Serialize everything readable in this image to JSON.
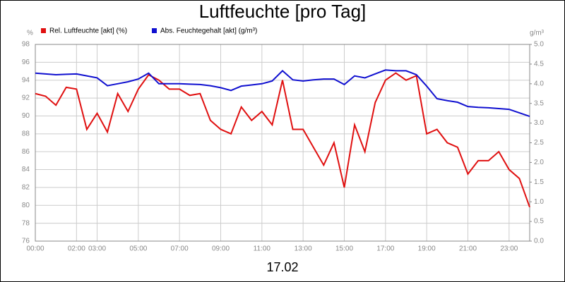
{
  "chart_data": {
    "type": "line",
    "title": "Luftfeuchte [pro Tag]",
    "xlabel": "17.02",
    "ylabel": "%",
    "y2label": "g/m³",
    "x": [
      0,
      0.5,
      1,
      1.5,
      2,
      2.5,
      3,
      3.5,
      4,
      4.5,
      5,
      5.5,
      6,
      6.5,
      7,
      7.5,
      8,
      8.5,
      9,
      9.5,
      10,
      10.5,
      11,
      11.5,
      12,
      12.5,
      13,
      13.5,
      14,
      14.5,
      15,
      15.5,
      16,
      16.5,
      17,
      17.5,
      18,
      18.5,
      19,
      19.5,
      20,
      20.5,
      21,
      21.5,
      22,
      22.5,
      23,
      23.5,
      24
    ],
    "series": [
      {
        "name": "Rel. Luftfeuchte [akt] (%)",
        "color": "#e01010",
        "values": [
          92.5,
          92.2,
          91.2,
          93.2,
          93.0,
          88.5,
          90.3,
          88.2,
          92.5,
          90.5,
          93.0,
          94.6,
          94.0,
          93.0,
          93.0,
          92.3,
          92.5,
          89.5,
          88.5,
          88.0,
          91.0,
          89.5,
          90.5,
          89.0,
          94.0,
          88.5,
          88.5,
          86.5,
          84.5,
          87.0,
          82.0,
          89.0,
          86.0,
          91.5,
          94.0,
          94.8,
          94.0,
          94.5,
          88.0,
          88.5,
          87.0,
          86.5,
          83.5,
          85.0,
          85.0,
          86.0,
          84.0,
          83.0,
          79.8
        ]
      },
      {
        "name": "Abs. Feuchtegehalt [akt] (g/m³)",
        "color": "#1010d0",
        "axis": "y2",
        "values": [
          4.27,
          4.25,
          4.23,
          4.24,
          4.25,
          4.2,
          4.15,
          3.95,
          4.0,
          4.05,
          4.12,
          4.27,
          4.0,
          4.0,
          4.0,
          3.99,
          3.98,
          3.95,
          3.9,
          3.83,
          3.94,
          3.97,
          4.0,
          4.07,
          4.33,
          4.1,
          4.07,
          4.1,
          4.12,
          4.12,
          3.98,
          4.2,
          4.15,
          4.25,
          4.35,
          4.33,
          4.33,
          4.23,
          3.94,
          3.62,
          3.57,
          3.53,
          3.42,
          3.4,
          3.39,
          3.37,
          3.35,
          3.26,
          3.17
        ]
      }
    ],
    "xlim": [
      0,
      24
    ],
    "xticks": [
      {
        "value": 0,
        "label": "00:00"
      },
      {
        "value": 2,
        "label": "02:00"
      },
      {
        "value": 3,
        "label": "03:00"
      },
      {
        "value": 5,
        "label": "05:00"
      },
      {
        "value": 7,
        "label": "07:00"
      },
      {
        "value": 9,
        "label": "09:00"
      },
      {
        "value": 11,
        "label": "11:00"
      },
      {
        "value": 13,
        "label": "13:00"
      },
      {
        "value": 15,
        "label": "15:00"
      },
      {
        "value": 17,
        "label": "17:00"
      },
      {
        "value": 19,
        "label": "19:00"
      },
      {
        "value": 21,
        "label": "21:00"
      },
      {
        "value": 23,
        "label": "23:00"
      }
    ],
    "ylim": [
      76,
      98
    ],
    "yticks": [
      76,
      78,
      80,
      82,
      84,
      86,
      88,
      90,
      92,
      94,
      96,
      98
    ],
    "y2lim": [
      0,
      5
    ],
    "y2ticks": [
      {
        "value": 0,
        "label": "0.0"
      },
      0.5,
      {
        "value": 1,
        "label": "1.0"
      },
      1.5,
      {
        "value": 2,
        "label": "2.0"
      },
      2.5,
      {
        "value": 3,
        "label": "3.0"
      },
      3.5,
      {
        "value": 4,
        "label": "4.0"
      },
      4.5,
      {
        "value": 5,
        "label": "5.0"
      }
    ],
    "grid": true
  }
}
